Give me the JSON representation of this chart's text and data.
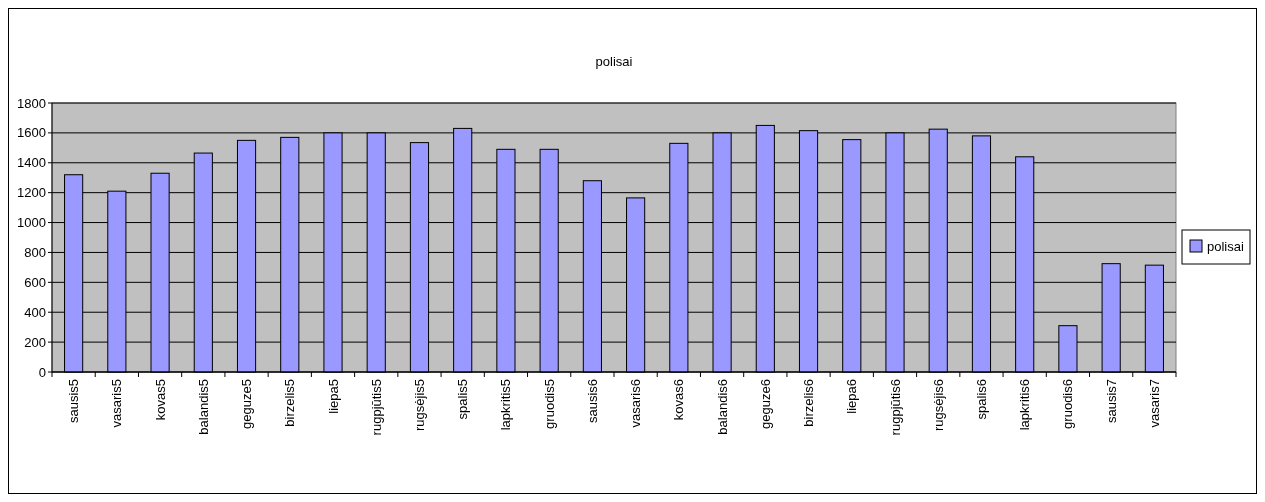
{
  "chart_data": {
    "type": "bar",
    "title": "polisai",
    "categories": [
      "sausis5",
      "vasaris5",
      "kovas5",
      "balandis5",
      "geguze5",
      "birzelis5",
      "liepa5",
      "rugpjūtis5",
      "rugsėjis5",
      "spalis5",
      "lapkritis5",
      "gruodis5",
      "sausis6",
      "vasaris6",
      "kovas6",
      "balandis6",
      "geguze6",
      "birzelis6",
      "liepa6",
      "rugpjūtis6",
      "rugsėjis6",
      "spalis6",
      "lapkritis6",
      "gruodis6",
      "sausis7",
      "vasaris7"
    ],
    "series": [
      {
        "name": "polisai",
        "color": "#9999ff",
        "values": [
          1320,
          1210,
          1330,
          1465,
          1550,
          1570,
          1600,
          1600,
          1535,
          1630,
          1490,
          1490,
          1280,
          1165,
          1530,
          1600,
          1650,
          1615,
          1555,
          1600,
          1625,
          1580,
          1440,
          310,
          725,
          715
        ]
      }
    ],
    "ylim": [
      0,
      1800
    ],
    "yticks": [
      0,
      200,
      400,
      600,
      800,
      1000,
      1200,
      1400,
      1600,
      1800
    ],
    "grid": "y",
    "legend": "right"
  }
}
